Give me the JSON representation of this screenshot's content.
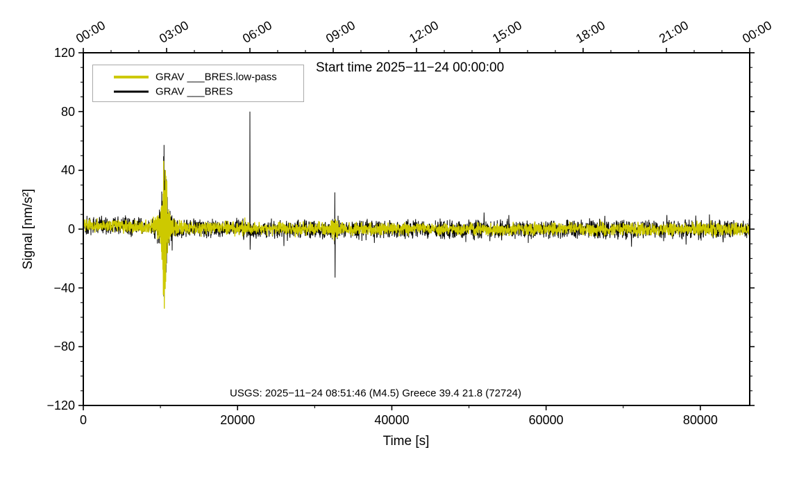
{
  "figure": {
    "background": "#ffffff"
  },
  "legend": {
    "items": [
      {
        "label": "GRAV ___BRES.low-pass",
        "color": "#cdc900"
      },
      {
        "label": "GRAV ___BRES",
        "color": "#000000"
      }
    ]
  },
  "chart_data": {
    "type": "line",
    "title": "Start time 2025−11−24 00:00:00",
    "xlabel": "Time [s]",
    "ylabel": "Signal [nm/s²]",
    "annotation": "USGS: 2025−11−24 08:51:46 (M4.5) Greece 39.4 21.8 (72724)",
    "xlim": [
      0,
      86400
    ],
    "ylim": [
      -120,
      120
    ],
    "grid": false,
    "legend_position": "top-left-inside",
    "y_axis": {
      "major_ticks": [
        -120,
        -80,
        -40,
        0,
        40,
        80,
        120
      ],
      "major_labels": [
        "−120",
        "−80",
        "−40",
        "0",
        "40",
        "80",
        "120"
      ],
      "minor_interval": 10
    },
    "x_axis_bottom": {
      "unit": "seconds",
      "major_ticks": [
        0,
        20000,
        40000,
        60000,
        80000
      ],
      "major_labels": [
        "0",
        "20000",
        "40000",
        "60000",
        "80000"
      ],
      "minor_interval": 10000
    },
    "x_axis_top": {
      "unit": "clock-time",
      "major_ticks_s": [
        0,
        10800,
        21600,
        32400,
        43200,
        54000,
        64800,
        75600,
        86400
      ],
      "major_labels": [
        "00:00",
        "03:00",
        "06:00",
        "09:00",
        "12:00",
        "15:00",
        "18:00",
        "21:00",
        "00:00"
      ],
      "minor_interval_s": 3600,
      "label_rotation_deg": -30
    },
    "sampling": {
      "dt_s": 30,
      "n_samples": 2880
    },
    "baseline_drift": {
      "amplitude": 3,
      "tau_s": 12000
    },
    "series": [
      {
        "name": "GRAV ___BRES.low-pass",
        "role": "low-pass",
        "color": "#cdc900",
        "stroke_width": 1.4,
        "z": 2,
        "seed": 777,
        "noise1": 3.0,
        "noise2": 2.2,
        "spike_prob": 0.05,
        "spike_amp": 3.5,
        "burst_scale": 0.95
      },
      {
        "name": "GRAV ___BRES",
        "role": "raw",
        "color": "#000000",
        "stroke_width": 1.0,
        "z": 1,
        "seed": 1337,
        "noise1": 4.2,
        "noise2": 3.4,
        "spike_prob": 0.06,
        "spike_amp": 7,
        "burst_scale": 1.0
      }
    ],
    "events": [
      {
        "type": "burst",
        "t_s": 10530,
        "amp": 44,
        "sigma_s": 220,
        "amp2": 13,
        "sigma2_s": 800,
        "affects": "both"
      },
      {
        "type": "spike",
        "t_s": 21600,
        "values": [
          80,
          -14
        ],
        "affects": "raw"
      },
      {
        "type": "burst",
        "t_s": 32600,
        "amp": 7,
        "sigma_s": 350,
        "affects": "both"
      },
      {
        "type": "spike",
        "t_s": 32610,
        "values": [
          25,
          -33
        ],
        "affects": "raw"
      }
    ]
  }
}
